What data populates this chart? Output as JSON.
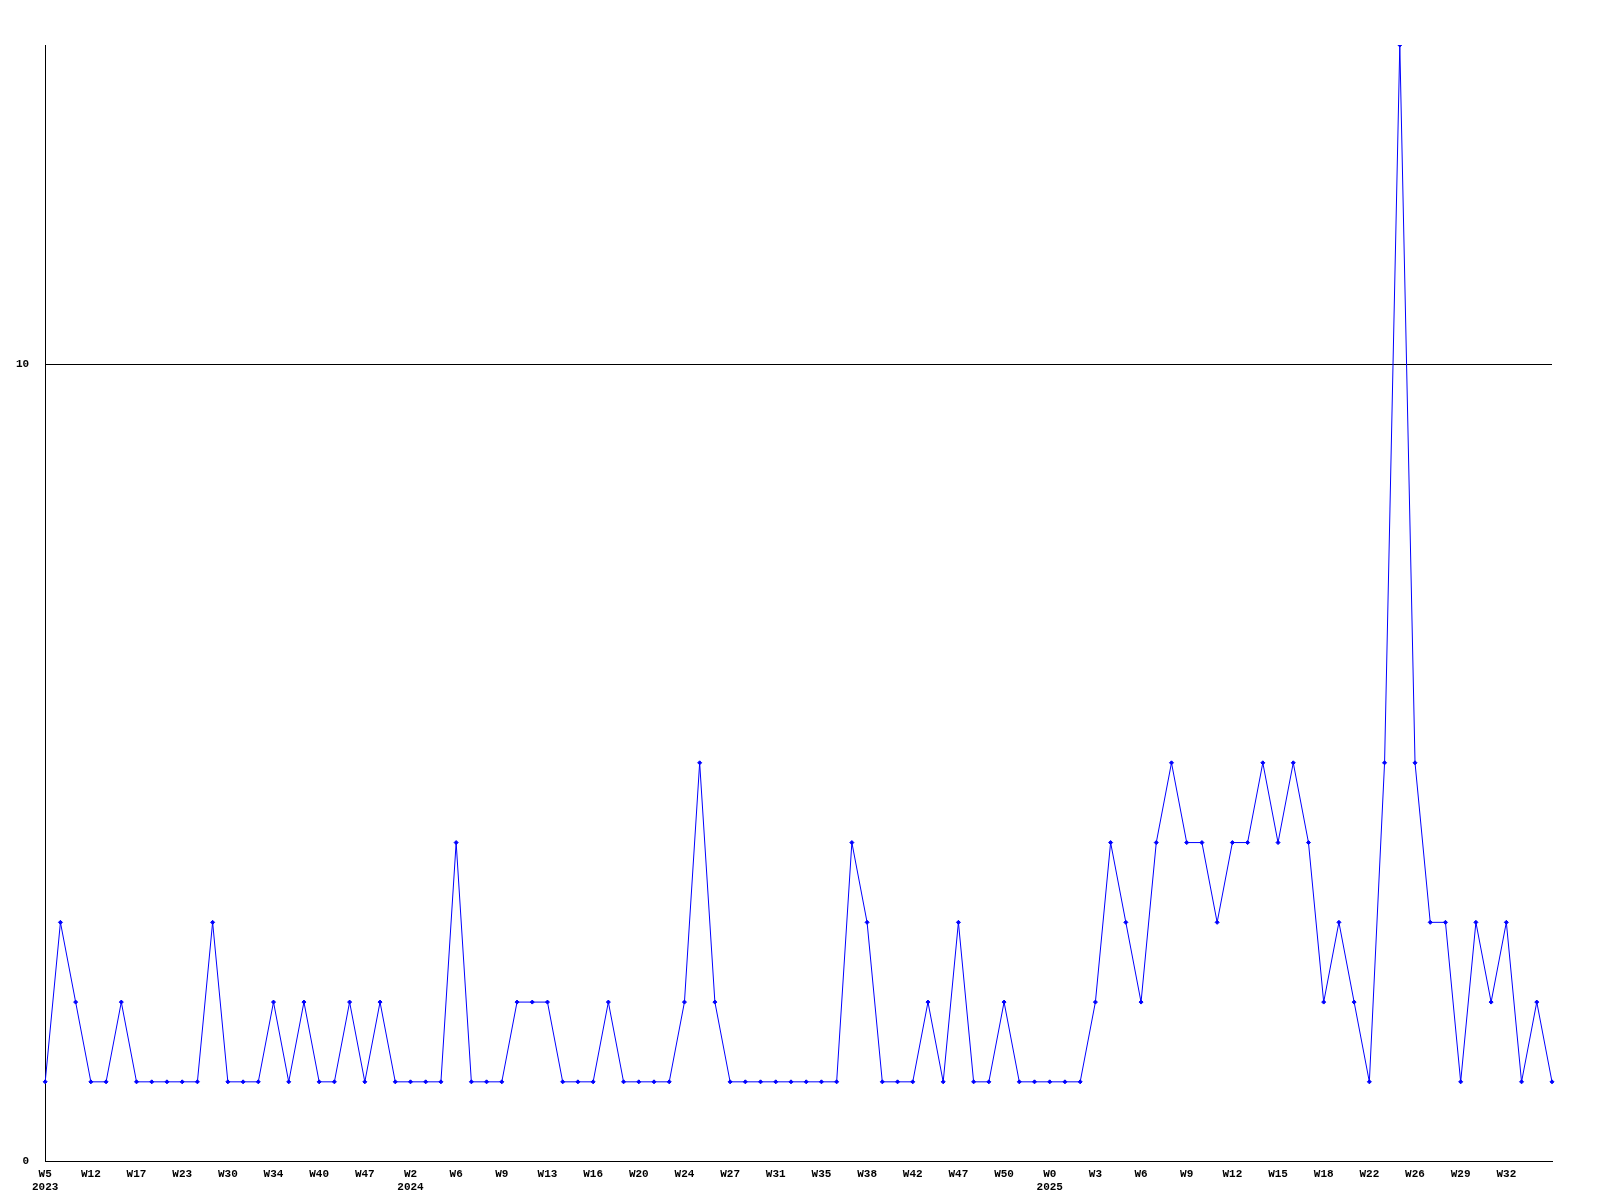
{
  "chart_data": {
    "type": "line",
    "categories": [
      "W5\n2023",
      null,
      null,
      "W12",
      null,
      null,
      "W17",
      null,
      null,
      "W23",
      null,
      null,
      "W30",
      null,
      null,
      "W34",
      null,
      null,
      "W40",
      null,
      null,
      "W47",
      null,
      null,
      "W2\n2024",
      null,
      null,
      "W6",
      null,
      null,
      "W9",
      null,
      null,
      "W13",
      null,
      null,
      "W16",
      null,
      null,
      "W20",
      null,
      null,
      "W24",
      null,
      null,
      "W27",
      null,
      null,
      "W31",
      null,
      null,
      "W35",
      null,
      null,
      "W38",
      null,
      null,
      "W42",
      null,
      null,
      "W47",
      null,
      null,
      "W50",
      null,
      null,
      "W0\n2025",
      null,
      null,
      "W3",
      null,
      null,
      "W6",
      null,
      null,
      "W9",
      null,
      null,
      "W12",
      null,
      null,
      "W15",
      null,
      null,
      "W18",
      null,
      null,
      "W22",
      null,
      null,
      "W26",
      null,
      null,
      "W29",
      null,
      null,
      "W32",
      null,
      null,
      null
    ],
    "series": [
      {
        "color": "#0000ff",
        "values": [
          1,
          3,
          2,
          1,
          1,
          2,
          1,
          1,
          1,
          1,
          1,
          3,
          1,
          1,
          1,
          2,
          1,
          2,
          1,
          1,
          2,
          1,
          2,
          1,
          1,
          1,
          1,
          4,
          1,
          1,
          1,
          2,
          2,
          2,
          1,
          1,
          1,
          2,
          1,
          1,
          1,
          1,
          2,
          5,
          2,
          1,
          1,
          1,
          1,
          1,
          1,
          1,
          1,
          4,
          3,
          1,
          1,
          1,
          2,
          1,
          3,
          1,
          1,
          2,
          1,
          1,
          1,
          1,
          1,
          2,
          4,
          3,
          2,
          4,
          5,
          4,
          4,
          3,
          4,
          4,
          5,
          4,
          5,
          4,
          2,
          3,
          2,
          1,
          5,
          14,
          5,
          3,
          3,
          1,
          3,
          2,
          3,
          1,
          2,
          1
        ]
      }
    ],
    "ylim": [
      0,
      14
    ],
    "yticks": [
      0,
      10
    ],
    "grid": "y",
    "legend": false,
    "marker": "diamond"
  }
}
